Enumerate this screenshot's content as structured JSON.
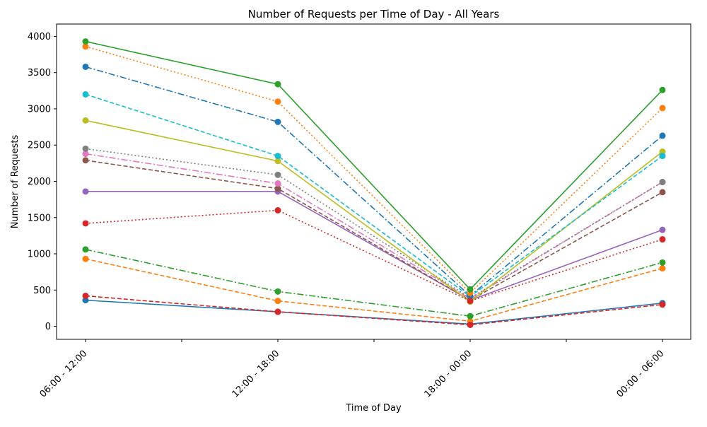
{
  "chart_data": {
    "type": "line",
    "title": "Number of Requests per Time of Day - All Years",
    "xlabel": "Time of Day",
    "ylabel": "Number of Requests",
    "categories": [
      "06:00 - 12:00",
      "12:00 - 18:00",
      "18:00 - 00:00",
      "00:00 - 06:00"
    ],
    "ylim": [
      -180,
      4170
    ],
    "yticks": [
      0,
      500,
      1000,
      1500,
      2000,
      2500,
      3000,
      3500,
      4000
    ],
    "grid": false,
    "legend": "none",
    "series": [
      {
        "values": [
          360,
          200,
          30,
          320
        ],
        "color": "#1f77b4",
        "dash": "solid"
      },
      {
        "values": [
          930,
          350,
          70,
          800
        ],
        "color": "#ff7f0e",
        "dash": "dashed"
      },
      {
        "values": [
          1060,
          480,
          140,
          880
        ],
        "color": "#2ca02c",
        "dash": "dashdot"
      },
      {
        "values": [
          420,
          200,
          20,
          300
        ],
        "color": "#d62728",
        "dash": "dashed"
      },
      {
        "values": [
          1860,
          1860,
          360,
          1330
        ],
        "color": "#9467bd",
        "dash": "solid"
      },
      {
        "values": [
          2290,
          1900,
          360,
          1850
        ],
        "color": "#8c564b",
        "dash": "dashed"
      },
      {
        "values": [
          2380,
          1970,
          380,
          1990
        ],
        "color": "#e377c2",
        "dash": "dashdot"
      },
      {
        "values": [
          2450,
          2090,
          390,
          1990
        ],
        "color": "#7f7f7f",
        "dash": "dotted"
      },
      {
        "values": [
          2840,
          2280,
          340,
          2410
        ],
        "color": "#bcbd22",
        "dash": "solid"
      },
      {
        "values": [
          3200,
          2350,
          410,
          2350
        ],
        "color": "#17becf",
        "dash": "dashed"
      },
      {
        "values": [
          3580,
          2820,
          420,
          2630
        ],
        "color": "#1f77b4",
        "dash": "dashdot"
      },
      {
        "values": [
          3860,
          3100,
          460,
          3010
        ],
        "color": "#ff7f0e",
        "dash": "dotted"
      },
      {
        "values": [
          3930,
          3340,
          510,
          3260
        ],
        "color": "#2ca02c",
        "dash": "solid"
      },
      {
        "values": [
          1420,
          1600,
          350,
          1200
        ],
        "color": "#d62728",
        "dash": "dotted"
      }
    ]
  }
}
